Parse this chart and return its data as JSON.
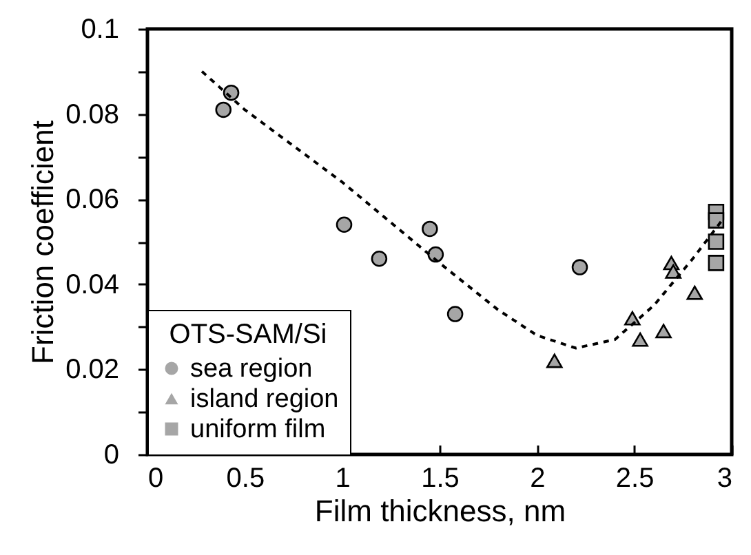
{
  "chart_data": {
    "type": "scatter",
    "xlabel": "Film thickness, nm",
    "ylabel": "Friction coefficient",
    "legend_title": "OTS-SAM/Si",
    "legend": "bottom left",
    "grid": false,
    "xlim": [
      0,
      3
    ],
    "xticks": [
      0,
      0.5,
      1,
      1.5,
      2,
      2.5,
      3
    ],
    "ylim": [
      0,
      0.1
    ],
    "yticks": [
      0,
      {
        "value": 0.01,
        "label": null
      },
      0.02,
      {
        "value": 0.03,
        "label": null
      },
      0.04,
      {
        "value": 0.05,
        "label": null
      },
      0.06,
      {
        "value": 0.07,
        "label": null
      },
      0.08,
      {
        "value": 0.09,
        "label": null
      },
      0.1
    ],
    "series": [
      {
        "name": "sea region",
        "marker": "circle",
        "color": "#a6a6a6",
        "x": [
          0.39,
          0.43,
          1.01,
          1.19,
          1.45,
          1.48,
          1.58,
          2.22
        ],
        "values": [
          0.081,
          0.085,
          0.054,
          0.046,
          0.053,
          0.047,
          0.033,
          0.044
        ]
      },
      {
        "name": "island region",
        "marker": "triangle",
        "color": "#a6a6a6",
        "x": [
          2.09,
          2.49,
          2.53,
          2.65,
          2.69,
          2.7,
          2.81
        ],
        "values": [
          0.022,
          0.032,
          0.027,
          0.029,
          0.045,
          0.043,
          0.038
        ]
      },
      {
        "name": "uniform film",
        "marker": "square",
        "color": "#a6a6a6",
        "x": [
          2.92,
          2.92,
          2.92,
          2.92
        ],
        "values": [
          0.057,
          0.055,
          0.05,
          0.045
        ]
      },
      {
        "type": "line",
        "line_style": "dashed",
        "marker": "none",
        "color": "#000000",
        "x": [
          0.28,
          0.5,
          1.0,
          1.5,
          1.8,
          2.0,
          2.2,
          2.4,
          2.6,
          2.8,
          2.95
        ],
        "values": [
          0.09,
          0.081,
          0.064,
          0.045,
          0.034,
          0.028,
          0.025,
          0.027,
          0.035,
          0.046,
          0.055
        ]
      }
    ]
  }
}
